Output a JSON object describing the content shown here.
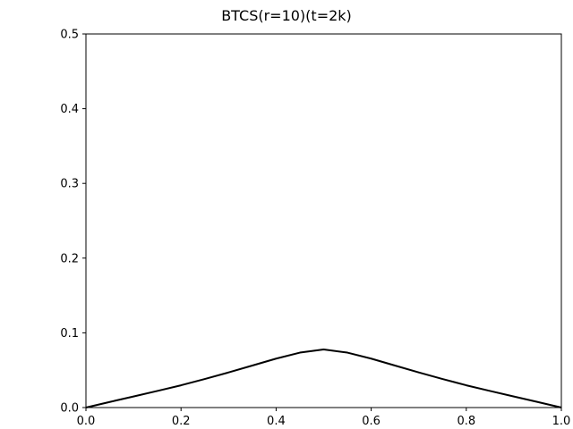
{
  "chart_data": {
    "type": "line",
    "title": "BTCS(r=10)(t=2k)",
    "xlabel": "",
    "ylabel": "",
    "xlim": [
      0.0,
      1.0
    ],
    "ylim": [
      0.0,
      0.5
    ],
    "xticks": [
      "0.0",
      "0.2",
      "0.4",
      "0.6",
      "0.8",
      "1.0"
    ],
    "yticks": [
      "0.0",
      "0.1",
      "0.2",
      "0.3",
      "0.4",
      "0.5"
    ],
    "grid": false,
    "line_color": "#000000",
    "series": [
      {
        "x": [
          0.0,
          0.05,
          0.1,
          0.15,
          0.2,
          0.25,
          0.3,
          0.35,
          0.4,
          0.45,
          0.5,
          0.55,
          0.6,
          0.65,
          0.7,
          0.75,
          0.8,
          0.85,
          0.9,
          0.95,
          1.0
        ],
        "values": [
          0.0,
          0.0075,
          0.0148,
          0.0222,
          0.0298,
          0.0382,
          0.047,
          0.0562,
          0.0655,
          0.0735,
          0.0778,
          0.0735,
          0.0655,
          0.0562,
          0.047,
          0.0382,
          0.0298,
          0.0222,
          0.0148,
          0.0075,
          0.0
        ]
      }
    ]
  }
}
